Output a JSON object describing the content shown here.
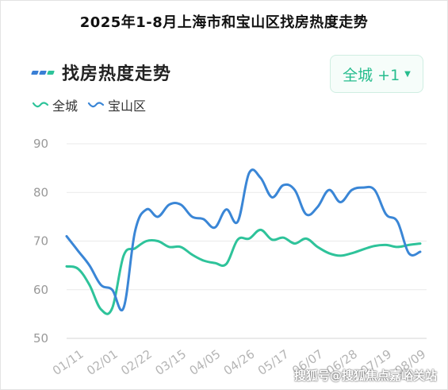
{
  "page_title": "2025年1-8月上海市和宝山区找房热度走势",
  "card": {
    "title": "找房热度走势",
    "header_icon_colors": [
      "#3a7fd5",
      "#3a7fd5",
      "#2ec39a"
    ]
  },
  "region_select": {
    "label": "全城 +1",
    "caret": "▼"
  },
  "watermark": "搜狐号@搜狐焦点嘉峪关站",
  "colors": {
    "citywide": "#2ec39a",
    "baoshan": "#3a86d6",
    "accent": "#27bd8e"
  },
  "chart_data": {
    "type": "line",
    "title": "",
    "xlabel": "",
    "ylabel": "",
    "ylim": [
      50,
      90
    ],
    "yticks": [
      50,
      60,
      70,
      80,
      90
    ],
    "grid": true,
    "legend_position": "top-left",
    "x_tick_labels": [
      "01/11",
      "02/01",
      "02/22",
      "03/15",
      "04/05",
      "04/26",
      "05/17",
      "06/07",
      "06/28",
      "07/19",
      "08/09"
    ],
    "x_tick_dates_visible_partially": [
      "06/07",
      "06/28",
      "07/19",
      "08/09"
    ],
    "x": [
      "01/04",
      "01/11",
      "01/18",
      "01/25",
      "02/01",
      "02/08",
      "02/15",
      "02/22",
      "03/01",
      "03/08",
      "03/15",
      "03/22",
      "03/29",
      "04/05",
      "04/12",
      "04/19",
      "04/26",
      "05/03",
      "05/10",
      "05/17",
      "05/24",
      "05/31",
      "06/07",
      "06/14",
      "06/21",
      "06/28",
      "07/05",
      "07/12",
      "07/19",
      "07/26",
      "08/02",
      "08/09"
    ],
    "series": [
      {
        "name": "全城",
        "color_key": "citywide",
        "values": [
          64.8,
          64.3,
          61.0,
          56.0,
          56.2,
          67.0,
          68.5,
          70.0,
          70.0,
          68.8,
          68.8,
          67.2,
          66.0,
          65.5,
          65.3,
          70.3,
          70.5,
          72.3,
          70.3,
          70.7,
          69.5,
          70.5,
          68.8,
          67.5,
          67.0,
          67.5,
          68.3,
          69.0,
          69.2,
          68.8,
          69.2,
          69.5
        ]
      },
      {
        "name": "宝山区",
        "color_key": "baoshan",
        "values": [
          71.0,
          68.0,
          65.0,
          61.0,
          60.0,
          56.3,
          72.0,
          76.5,
          75.0,
          77.5,
          77.5,
          75.0,
          74.5,
          72.8,
          76.5,
          74.0,
          84.0,
          83.0,
          79.0,
          81.5,
          80.5,
          75.5,
          77.0,
          80.5,
          78.0,
          80.5,
          81.0,
          80.5,
          75.5,
          74.0,
          67.5,
          67.8
        ]
      }
    ]
  }
}
